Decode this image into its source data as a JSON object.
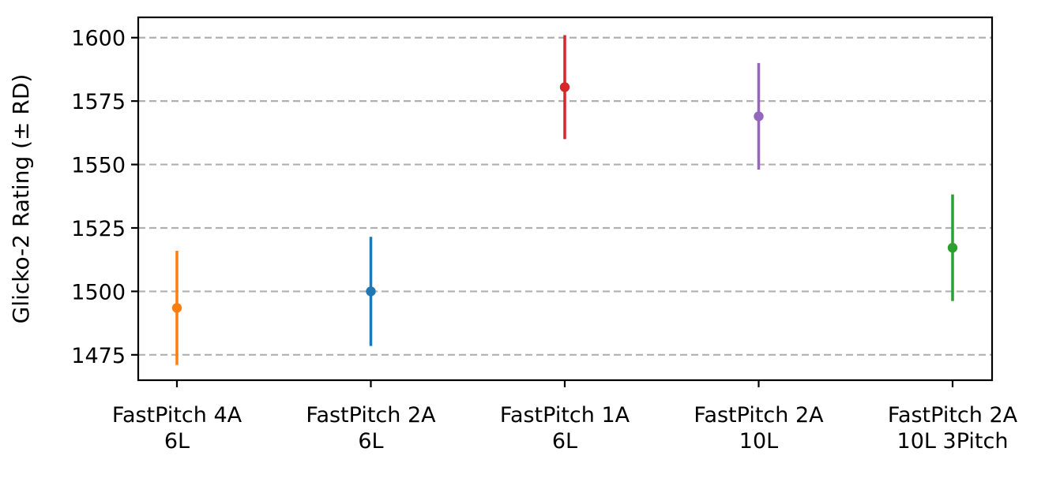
{
  "chart_data": {
    "type": "scatter",
    "title": "",
    "xlabel": "",
    "ylabel": "Glicko-2 Rating (± RD)",
    "categories": [
      [
        "FastPitch 4A",
        "6L"
      ],
      [
        "FastPitch 2A",
        "6L"
      ],
      [
        "FastPitch 1A",
        "6L"
      ],
      [
        "FastPitch 2A",
        "10L"
      ],
      [
        "FastPitch 2A",
        "10L 3Pitch"
      ]
    ],
    "values": [
      1493.5,
      1500,
      1580.5,
      1569,
      1517.2
    ],
    "errors": [
      22.5,
      21.5,
      20.5,
      21,
      21
    ],
    "colors": [
      "#ff7f0e",
      "#1f77b4",
      "#d62728",
      "#9467bd",
      "#2ca02c"
    ],
    "yticks": [
      1475,
      1500,
      1525,
      1550,
      1575,
      1600
    ],
    "ylim": [
      1465,
      1608
    ],
    "grid": "y-dashed",
    "legend": "none"
  }
}
